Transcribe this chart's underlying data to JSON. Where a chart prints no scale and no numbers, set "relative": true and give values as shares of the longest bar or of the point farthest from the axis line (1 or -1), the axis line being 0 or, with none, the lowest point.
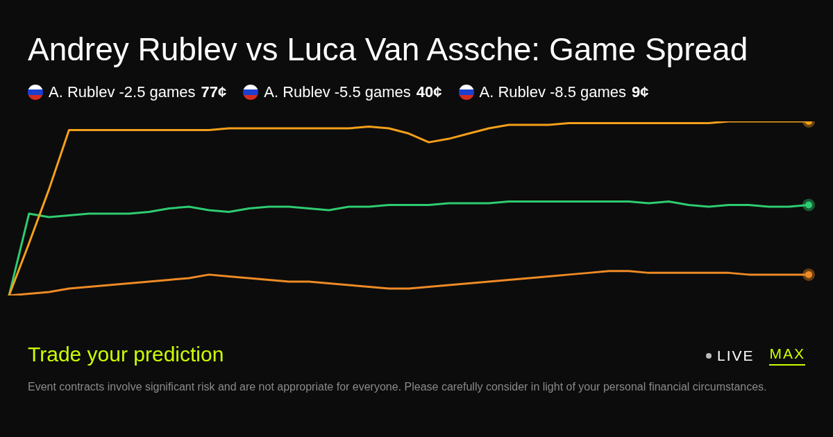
{
  "chart_data": {
    "type": "line",
    "title": "Andrey Rublev vs Luca Van Assche: Game Spread",
    "relative": true,
    "legend": "top left",
    "categories": [
      null,
      null,
      null,
      null,
      null,
      null,
      null,
      null,
      null,
      null,
      null,
      null,
      null,
      null,
      null,
      null,
      null,
      null,
      null,
      null,
      null,
      null,
      null,
      null,
      null,
      null,
      null,
      null,
      null,
      null,
      null,
      null,
      null,
      null,
      null,
      null,
      null,
      null,
      null,
      null,
      null
    ],
    "series": [
      {
        "name": "A. Rublev -2.5 games 77¢",
        "color": "#f5a01a",
        "values": [
          0,
          0.3,
          0.61,
          0.95,
          0.95,
          0.95,
          0.95,
          0.95,
          0.95,
          0.95,
          0.95,
          0.96,
          0.96,
          0.96,
          0.96,
          0.96,
          0.96,
          0.96,
          0.97,
          0.96,
          0.93,
          0.88,
          0.9,
          0.93,
          0.96,
          0.98,
          0.98,
          0.98,
          0.99,
          0.99,
          0.99,
          0.99,
          0.99,
          0.99,
          0.99,
          0.99,
          1,
          1,
          1,
          1,
          1
        ]
      },
      {
        "name": "A. Rublev -5.5 games 40¢",
        "color": "#2ecc71",
        "values": [
          0,
          0.47,
          0.45,
          0.46,
          0.47,
          0.47,
          0.47,
          0.48,
          0.5,
          0.51,
          0.49,
          0.48,
          0.5,
          0.51,
          0.51,
          0.5,
          0.49,
          0.51,
          0.51,
          0.52,
          0.52,
          0.52,
          0.53,
          0.53,
          0.53,
          0.54,
          0.54,
          0.54,
          0.54,
          0.54,
          0.54,
          0.54,
          0.53,
          0.54,
          0.52,
          0.51,
          0.52,
          0.52,
          0.51,
          0.51,
          0.52
        ]
      },
      {
        "name": "A. Rublev -8.5 games 9¢",
        "color": "#ef8a26",
        "values": [
          0,
          0.01,
          0.02,
          0.04,
          0.05,
          0.06,
          0.07,
          0.08,
          0.09,
          0.1,
          0.12,
          0.11,
          0.1,
          0.09,
          0.08,
          0.08,
          0.07,
          0.06,
          0.05,
          0.04,
          0.04,
          0.05,
          0.06,
          0.07,
          0.08,
          0.09,
          0.1,
          0.11,
          0.12,
          0.13,
          0.14,
          0.14,
          0.13,
          0.13,
          0.13,
          0.13,
          0.13,
          0.12,
          0.12,
          0.12,
          0.12
        ]
      }
    ],
    "annotations": [
      "Trade your prediction",
      "Event contracts involve significant risk and are not appropriate for everyone. Please carefully consider in light of your personal financial circumstances.",
      "LIVE",
      "MAX"
    ]
  }
}
